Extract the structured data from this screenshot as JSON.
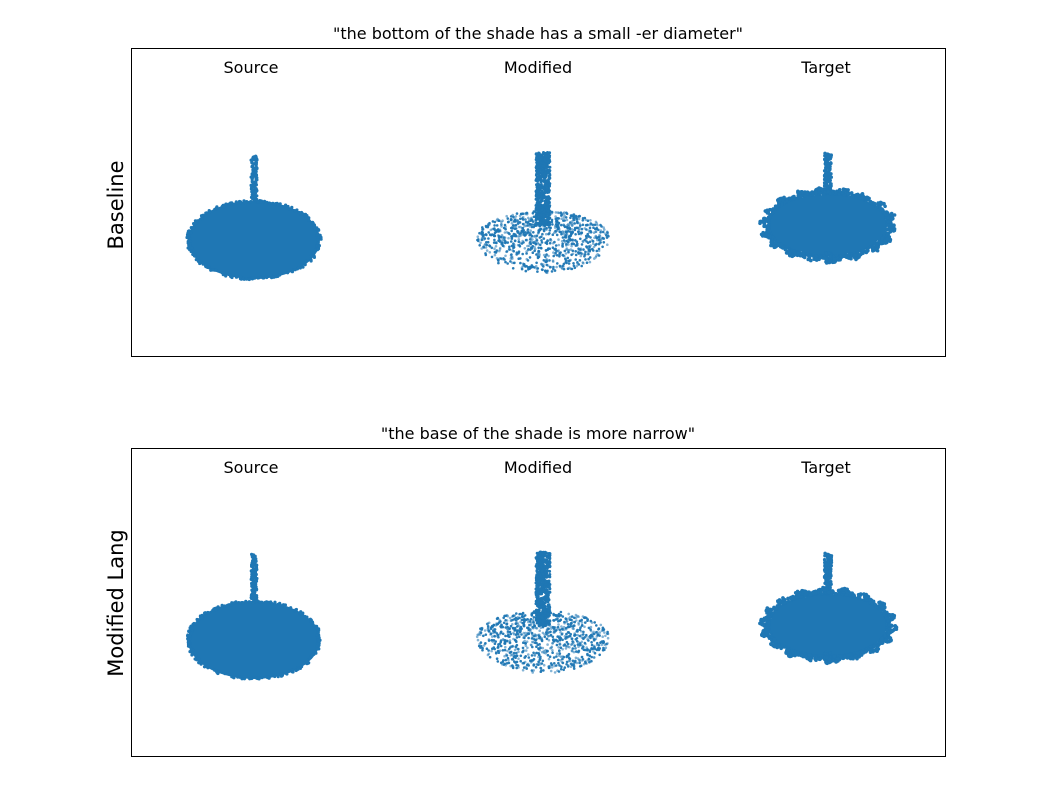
{
  "figure": {
    "point_color": "#1f77b4",
    "columns": [
      "Source",
      "Modified",
      "Target"
    ],
    "rows": [
      {
        "title": "\"the bottom of the shade has a small -er diameter\"",
        "row_label": "Baseline"
      },
      {
        "title": "\"the base of the shade is more narrow\"",
        "row_label": "Modified Lang"
      }
    ],
    "point_clouds": [
      {
        "name": "source",
        "shape": "lamp-with-wide-shade"
      },
      {
        "name": "modified",
        "shape": "sparse-shade-with-stem"
      },
      {
        "name": "target",
        "shape": "lamp-with-ribbed-shade"
      }
    ]
  }
}
